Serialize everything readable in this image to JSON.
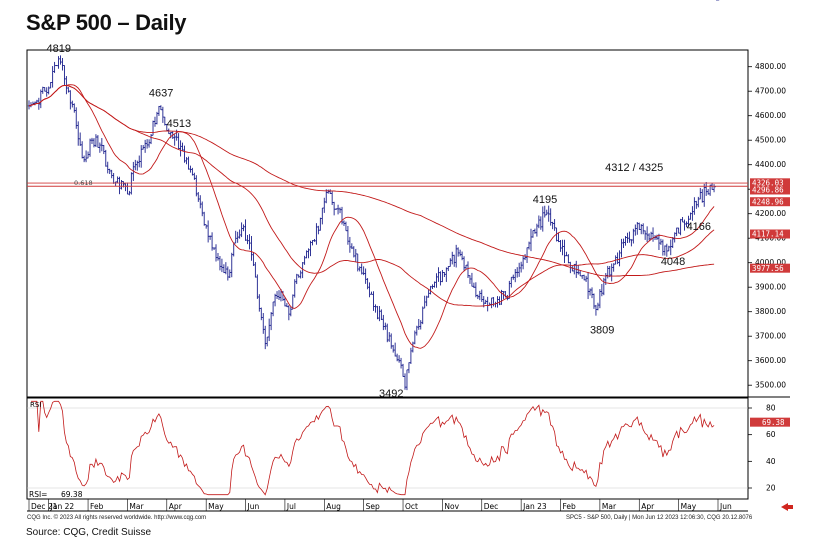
{
  "title": "S&P 500 – Daily",
  "footer": {
    "left": "CQG Inc. © 2023 All rights reserved worldwide. http://www.cqg.com",
    "right": "SPC5 - S&P 500, Daily | Mon Jun 12 2023 12:06:30, CQG 20.12.8076",
    "source": "Source: CQG, Credit Suisse"
  },
  "colors": {
    "bars": "#1a1f8c",
    "ma": "#c21a1a",
    "rsi": "#c21a1a",
    "hline": "#d03a3a",
    "tag": "#d03a3a"
  },
  "chart_data": [
    {
      "type": "bar",
      "subtype": "ohlc",
      "title": "S&P 500 – Daily",
      "x_tick_labels": [
        "Dec 21",
        "Jan 22",
        "Feb",
        "Mar",
        "Apr",
        "May",
        "Jun",
        "Jul",
        "Aug",
        "Sep",
        "Oct",
        "Nov",
        "Dec",
        "Jan 23",
        "Feb",
        "Mar",
        "Apr",
        "May",
        "Jun"
      ],
      "x_tick_index": [
        0,
        10,
        30,
        50,
        70,
        90,
        110,
        130,
        150,
        170,
        190,
        210,
        230,
        250,
        270,
        290,
        310,
        330,
        350
      ],
      "y_ticks": [
        3500,
        3600,
        3700,
        3800,
        3900,
        4000,
        4100,
        4200,
        4300,
        4400,
        4500,
        4600,
        4700,
        4800
      ],
      "y_tick_labels": [
        "3500.00",
        "3600.00",
        "3700.00",
        "3800.00",
        "3900.00",
        "4000.00",
        "4100.00",
        "4200.00",
        "4300.00",
        "4400.00",
        "4500.00",
        "4600.00",
        "4700.00",
        "4800.00"
      ],
      "ylim": [
        3460,
        4860
      ],
      "anchors": [
        [
          0,
          4640
        ],
        [
          4,
          4660
        ],
        [
          8,
          4700
        ],
        [
          12,
          4780
        ],
        [
          16,
          4819
        ],
        [
          20,
          4700
        ],
        [
          24,
          4560
        ],
        [
          28,
          4420
        ],
        [
          32,
          4500
        ],
        [
          36,
          4480
        ],
        [
          40,
          4380
        ],
        [
          44,
          4330
        ],
        [
          50,
          4280
        ],
        [
          54,
          4400
        ],
        [
          58,
          4470
        ],
        [
          62,
          4520
        ],
        [
          66,
          4637
        ],
        [
          70,
          4540
        ],
        [
          74,
          4513
        ],
        [
          78,
          4460
        ],
        [
          82,
          4380
        ],
        [
          86,
          4260
        ],
        [
          90,
          4150
        ],
        [
          94,
          4060
        ],
        [
          98,
          3980
        ],
        [
          102,
          3960
        ],
        [
          104,
          4080
        ],
        [
          108,
          4140
        ],
        [
          112,
          4080
        ],
        [
          116,
          3860
        ],
        [
          120,
          3670
        ],
        [
          124,
          3840
        ],
        [
          128,
          3880
        ],
        [
          132,
          3790
        ],
        [
          136,
          3950
        ],
        [
          140,
          4020
        ],
        [
          144,
          4090
        ],
        [
          148,
          4180
        ],
        [
          152,
          4290
        ],
        [
          156,
          4220
        ],
        [
          160,
          4160
        ],
        [
          164,
          4060
        ],
        [
          168,
          3980
        ],
        [
          172,
          3900
        ],
        [
          176,
          3820
        ],
        [
          180,
          3740
        ],
        [
          184,
          3660
        ],
        [
          188,
          3600
        ],
        [
          191,
          3492
        ],
        [
          194,
          3640
        ],
        [
          198,
          3740
        ],
        [
          202,
          3860
        ],
        [
          206,
          3920
        ],
        [
          210,
          3960
        ],
        [
          214,
          4010
        ],
        [
          218,
          4040
        ],
        [
          222,
          3990
        ],
        [
          226,
          3900
        ],
        [
          230,
          3850
        ],
        [
          234,
          3830
        ],
        [
          238,
          3850
        ],
        [
          242,
          3860
        ],
        [
          246,
          3940
        ],
        [
          250,
          3990
        ],
        [
          254,
          4080
        ],
        [
          258,
          4150
        ],
        [
          262,
          4195
        ],
        [
          266,
          4160
        ],
        [
          270,
          4060
        ],
        [
          274,
          4000
        ],
        [
          278,
          3960
        ],
        [
          282,
          3930
        ],
        [
          286,
          3870
        ],
        [
          288,
          3809
        ],
        [
          292,
          3930
        ],
        [
          296,
          3980
        ],
        [
          300,
          4040
        ],
        [
          304,
          4100
        ],
        [
          308,
          4140
        ],
        [
          312,
          4130
        ],
        [
          316,
          4120
        ],
        [
          320,
          4080
        ],
        [
          324,
          4048
        ],
        [
          328,
          4120
        ],
        [
          332,
          4166
        ],
        [
          336,
          4200
        ],
        [
          340,
          4260
        ],
        [
          344,
          4290
        ],
        [
          348,
          4310
        ]
      ],
      "annotations": [
        {
          "text": "4819",
          "index": 16,
          "value": 4819
        },
        {
          "text": "4637",
          "index": 66,
          "value": 4637
        },
        {
          "text": "4513",
          "index": 74,
          "value": 4513
        },
        {
          "text": "4312 / 4325",
          "index": 315,
          "value": 4318
        },
        {
          "text": "4195",
          "index": 262,
          "value": 4195
        },
        {
          "text": "4166",
          "index": 332,
          "value": 4166
        },
        {
          "text": "4048",
          "index": 324,
          "value": 4048
        },
        {
          "text": "3809",
          "index": 288,
          "value": 3809
        },
        {
          "text": "3492",
          "index": 191,
          "value": 3492
        }
      ],
      "fib_label": "0.618",
      "horizontal_lines": [
        4312,
        4325
      ],
      "moving_averages": [
        {
          "name": "short",
          "period": 20
        },
        {
          "name": "medium",
          "period": 55
        },
        {
          "name": "long",
          "period": 200
        }
      ],
      "price_tags": [
        "4326.03",
        "4296.86",
        "4248.96",
        "4117.14",
        "3977.56"
      ],
      "price_tag_values": [
        4326.03,
        4296.86,
        4248.96,
        4117.14,
        3977.56
      ]
    },
    {
      "type": "line",
      "title": "RSI",
      "y_ticks": [
        20,
        40,
        60,
        80
      ],
      "ylim": [
        14,
        86
      ],
      "legend": "RSI=",
      "legend_value": "69.38",
      "current_value": 69.38,
      "tag": "69.38"
    }
  ]
}
